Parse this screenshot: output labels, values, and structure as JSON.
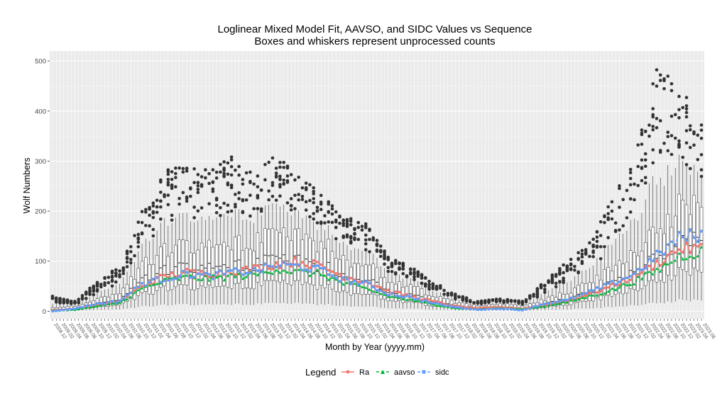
{
  "chart_data": {
    "type": "box+line",
    "title": "Loglinear Mixed Model Fit, AAVSO, and SIDC Values vs Sequence",
    "subtitle": "Boxes and whiskers represent unprocessed counts",
    "xlabel": "Month by Year (yyyy.mm)",
    "ylabel": "Wolf Numbers",
    "ylim": [
      -15,
      520
    ],
    "y_ticks": [
      0,
      100,
      200,
      300,
      400,
      500
    ],
    "x_first_label": "2008.12",
    "x_last_label": "2023.06",
    "x_start": "2008-12",
    "x_end": "2023-06",
    "x_tick_every_months": 2,
    "grid": true,
    "legend_title": "Legend",
    "legend_position": "bottom",
    "series": [
      {
        "name": "Ra",
        "color": "#F8766D",
        "marker": "circle",
        "dash": "solid",
        "anchors": [
          [
            0,
            2
          ],
          [
            6,
            4
          ],
          [
            12,
            12
          ],
          [
            18,
            20
          ],
          [
            24,
            50
          ],
          [
            30,
            70
          ],
          [
            36,
            78
          ],
          [
            42,
            75
          ],
          [
            48,
            80
          ],
          [
            54,
            85
          ],
          [
            60,
            95
          ],
          [
            66,
            100
          ],
          [
            72,
            90
          ],
          [
            78,
            70
          ],
          [
            84,
            60
          ],
          [
            90,
            40
          ],
          [
            96,
            30
          ],
          [
            102,
            20
          ],
          [
            108,
            10
          ],
          [
            114,
            6
          ],
          [
            120,
            8
          ],
          [
            126,
            5
          ],
          [
            132,
            12
          ],
          [
            138,
            20
          ],
          [
            144,
            35
          ],
          [
            150,
            50
          ],
          [
            156,
            70
          ],
          [
            162,
            95
          ],
          [
            168,
            125
          ],
          [
            174,
            125
          ]
        ]
      },
      {
        "name": "aavso",
        "color": "#00BA38",
        "marker": "triangle",
        "dash": "dashed",
        "anchors": [
          [
            0,
            1
          ],
          [
            6,
            3
          ],
          [
            12,
            10
          ],
          [
            18,
            17
          ],
          [
            24,
            45
          ],
          [
            30,
            60
          ],
          [
            36,
            68
          ],
          [
            42,
            65
          ],
          [
            48,
            70
          ],
          [
            54,
            72
          ],
          [
            60,
            85
          ],
          [
            66,
            78
          ],
          [
            72,
            75
          ],
          [
            78,
            55
          ],
          [
            84,
            45
          ],
          [
            90,
            30
          ],
          [
            96,
            22
          ],
          [
            102,
            14
          ],
          [
            108,
            6
          ],
          [
            114,
            4
          ],
          [
            120,
            6
          ],
          [
            126,
            4
          ],
          [
            132,
            10
          ],
          [
            138,
            18
          ],
          [
            144,
            30
          ],
          [
            150,
            42
          ],
          [
            156,
            60
          ],
          [
            162,
            80
          ],
          [
            168,
            110
          ],
          [
            174,
            120
          ]
        ]
      },
      {
        "name": "sidc",
        "color": "#619CFF",
        "marker": "square",
        "dash": "dashed",
        "anchors": [
          [
            0,
            0
          ],
          [
            6,
            5
          ],
          [
            12,
            15
          ],
          [
            18,
            20
          ],
          [
            24,
            55
          ],
          [
            30,
            65
          ],
          [
            36,
            75
          ],
          [
            42,
            70
          ],
          [
            48,
            78
          ],
          [
            54,
            80
          ],
          [
            60,
            92
          ],
          [
            66,
            90
          ],
          [
            72,
            82
          ],
          [
            78,
            62
          ],
          [
            84,
            55
          ],
          [
            90,
            35
          ],
          [
            96,
            28
          ],
          [
            102,
            16
          ],
          [
            108,
            8
          ],
          [
            114,
            3
          ],
          [
            120,
            5
          ],
          [
            126,
            2
          ],
          [
            132,
            15
          ],
          [
            138,
            22
          ],
          [
            144,
            38
          ],
          [
            150,
            55
          ],
          [
            156,
            75
          ],
          [
            162,
            110
          ],
          [
            168,
            145
          ],
          [
            174,
            155
          ]
        ]
      }
    ],
    "boxes": {
      "fill": "#ffffff",
      "outline": "#333333",
      "outlier_color": "#333333",
      "median_profile": [
        [
          0,
          3
        ],
        [
          6,
          5
        ],
        [
          12,
          14
        ],
        [
          18,
          22
        ],
        [
          24,
          60
        ],
        [
          30,
          80
        ],
        [
          36,
          90
        ],
        [
          42,
          88
        ],
        [
          48,
          92
        ],
        [
          54,
          95
        ],
        [
          60,
          105
        ],
        [
          66,
          100
        ],
        [
          72,
          92
        ],
        [
          78,
          72
        ],
        [
          84,
          62
        ],
        [
          90,
          42
        ],
        [
          96,
          32
        ],
        [
          102,
          20
        ],
        [
          108,
          10
        ],
        [
          114,
          6
        ],
        [
          120,
          8
        ],
        [
          126,
          6
        ],
        [
          132,
          14
        ],
        [
          138,
          24
        ],
        [
          144,
          38
        ],
        [
          150,
          55
        ],
        [
          156,
          75
        ],
        [
          162,
          110
        ],
        [
          168,
          140
        ],
        [
          174,
          140
        ]
      ],
      "outlier_max_profile": [
        [
          0,
          30
        ],
        [
          6,
          20
        ],
        [
          12,
          60
        ],
        [
          18,
          90
        ],
        [
          24,
          200
        ],
        [
          30,
          280
        ],
        [
          36,
          300
        ],
        [
          42,
          280
        ],
        [
          48,
          310
        ],
        [
          54,
          280
        ],
        [
          60,
          315
        ],
        [
          66,
          270
        ],
        [
          72,
          240
        ],
        [
          78,
          190
        ],
        [
          84,
          175
        ],
        [
          90,
          110
        ],
        [
          96,
          90
        ],
        [
          102,
          60
        ],
        [
          108,
          35
        ],
        [
          114,
          20
        ],
        [
          120,
          25
        ],
        [
          126,
          20
        ],
        [
          132,
          60
        ],
        [
          138,
          100
        ],
        [
          144,
          140
        ],
        [
          150,
          230
        ],
        [
          156,
          310
        ],
        [
          162,
          490
        ],
        [
          168,
          460
        ],
        [
          174,
          380
        ]
      ]
    }
  },
  "legend": {
    "title": "Legend",
    "items": [
      {
        "label": "Ra",
        "color": "#F8766D"
      },
      {
        "label": "aavso",
        "color": "#00BA38"
      },
      {
        "label": "sidc",
        "color": "#619CFF"
      }
    ]
  }
}
